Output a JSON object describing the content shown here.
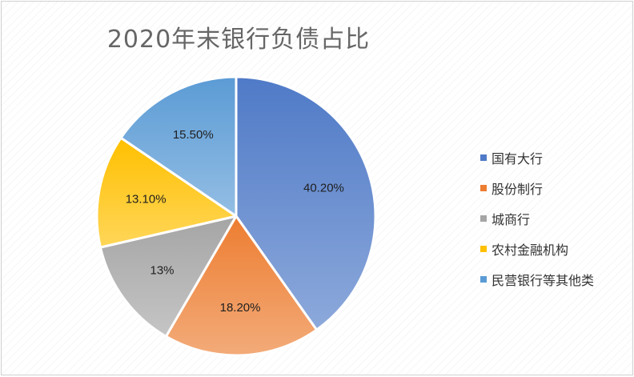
{
  "chart_data": {
    "type": "pie",
    "title": "2020年末银行负债占比",
    "categories": [
      "国有大行",
      "股份制行",
      "城商行",
      "农村金融机构",
      "民营银行等其他类"
    ],
    "values": [
      40.2,
      18.2,
      13,
      13.1,
      15.5
    ],
    "data_labels": [
      "40.20%",
      "18.20%",
      "13%",
      "13.10%",
      "15.50%"
    ],
    "colors": [
      "#4f7ac7",
      "#ed7d31",
      "#a5a5a5",
      "#ffc000",
      "#5b9bd5"
    ],
    "legend_position": "right",
    "start_angle": "12 o'clock, clockwise"
  }
}
